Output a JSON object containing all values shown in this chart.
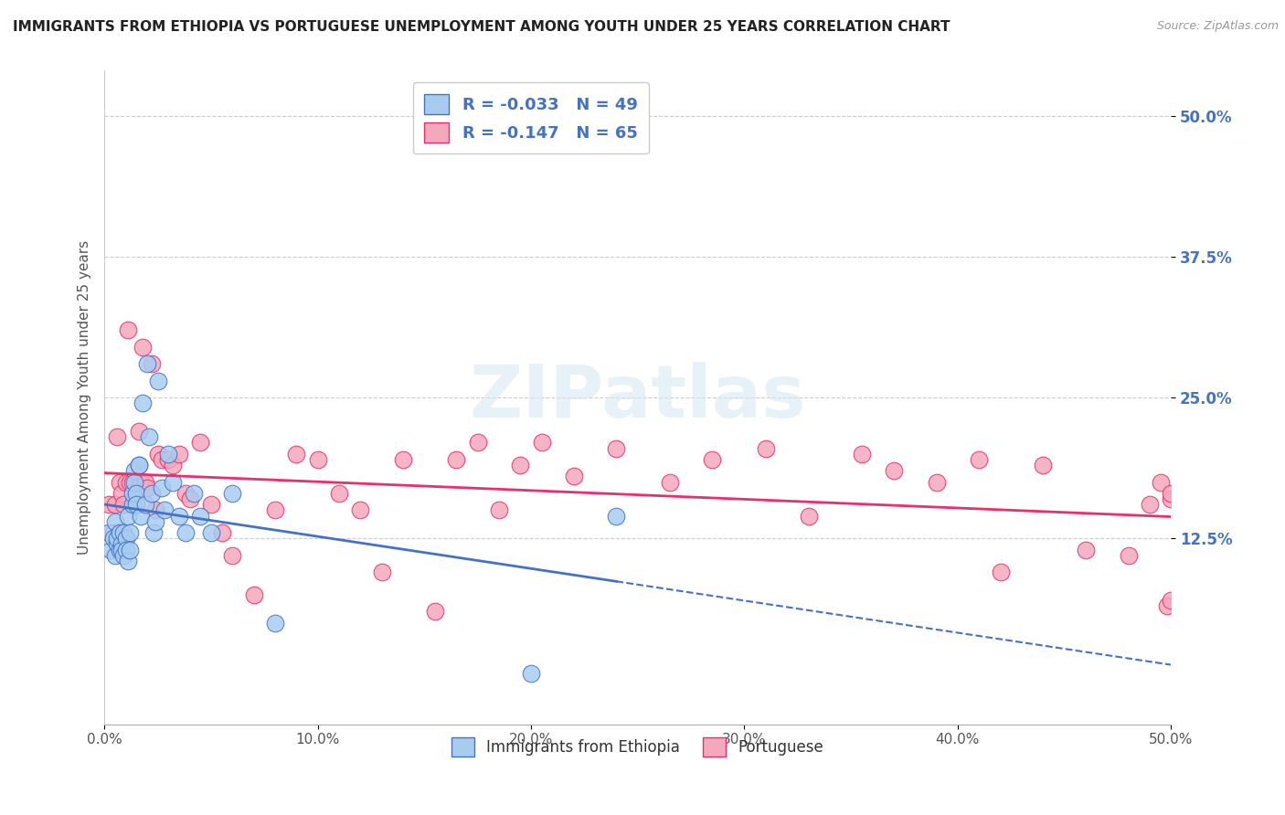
{
  "title": "IMMIGRANTS FROM ETHIOPIA VS PORTUGUESE UNEMPLOYMENT AMONG YOUTH UNDER 25 YEARS CORRELATION CHART",
  "source": "Source: ZipAtlas.com",
  "ylabel": "Unemployment Among Youth under 25 years",
  "watermark": "ZIPatlas",
  "legend_label_1": "Immigrants from Ethiopia",
  "legend_label_2": "Portuguese",
  "legend_r1": "R = -0.033",
  "legend_n1": "N = 49",
  "legend_r2": "R = -0.147",
  "legend_n2": "N = 65",
  "xlim": [
    0.0,
    0.5
  ],
  "ylim": [
    -0.04,
    0.54
  ],
  "xtick_labels": [
    "0.0%",
    "10.0%",
    "20.0%",
    "30.0%",
    "40.0%",
    "50.0%"
  ],
  "xtick_vals": [
    0.0,
    0.1,
    0.2,
    0.3,
    0.4,
    0.5
  ],
  "ytick_labels_right": [
    "12.5%",
    "25.0%",
    "37.5%",
    "50.0%"
  ],
  "ytick_vals_right": [
    0.125,
    0.25,
    0.375,
    0.5
  ],
  "color_blue": "#A8CCF0",
  "color_pink": "#F4A8BC",
  "color_line_blue": "#4472C4",
  "color_line_pink": "#E8306A",
  "background": "#FFFFFF",
  "grid_color": "#CCCCCC",
  "blue_x": [
    0.002,
    0.003,
    0.004,
    0.005,
    0.005,
    0.006,
    0.006,
    0.007,
    0.007,
    0.008,
    0.008,
    0.009,
    0.009,
    0.01,
    0.01,
    0.011,
    0.011,
    0.012,
    0.012,
    0.013,
    0.013,
    0.014,
    0.014,
    0.015,
    0.015,
    0.016,
    0.016,
    0.017,
    0.018,
    0.019,
    0.02,
    0.021,
    0.022,
    0.023,
    0.024,
    0.025,
    0.027,
    0.028,
    0.03,
    0.032,
    0.035,
    0.038,
    0.042,
    0.045,
    0.05,
    0.06,
    0.08,
    0.2,
    0.24
  ],
  "blue_y": [
    0.13,
    0.115,
    0.125,
    0.14,
    0.11,
    0.12,
    0.125,
    0.115,
    0.13,
    0.12,
    0.115,
    0.13,
    0.11,
    0.125,
    0.115,
    0.145,
    0.105,
    0.13,
    0.115,
    0.155,
    0.165,
    0.185,
    0.175,
    0.165,
    0.155,
    0.19,
    0.19,
    0.145,
    0.245,
    0.155,
    0.28,
    0.215,
    0.165,
    0.13,
    0.14,
    0.265,
    0.17,
    0.15,
    0.2,
    0.175,
    0.145,
    0.13,
    0.165,
    0.145,
    0.13,
    0.165,
    0.05,
    0.005,
    0.145
  ],
  "pink_x": [
    0.002,
    0.004,
    0.005,
    0.006,
    0.007,
    0.008,
    0.009,
    0.01,
    0.011,
    0.012,
    0.013,
    0.014,
    0.015,
    0.016,
    0.017,
    0.018,
    0.019,
    0.02,
    0.022,
    0.024,
    0.025,
    0.027,
    0.03,
    0.032,
    0.035,
    0.038,
    0.04,
    0.045,
    0.05,
    0.055,
    0.06,
    0.07,
    0.08,
    0.09,
    0.1,
    0.11,
    0.12,
    0.13,
    0.14,
    0.155,
    0.165,
    0.175,
    0.185,
    0.195,
    0.205,
    0.22,
    0.24,
    0.265,
    0.285,
    0.31,
    0.33,
    0.355,
    0.37,
    0.39,
    0.41,
    0.42,
    0.44,
    0.46,
    0.48,
    0.49,
    0.495,
    0.498,
    0.5,
    0.5,
    0.5
  ],
  "pink_y": [
    0.155,
    0.13,
    0.155,
    0.215,
    0.175,
    0.165,
    0.155,
    0.175,
    0.31,
    0.175,
    0.175,
    0.16,
    0.155,
    0.22,
    0.175,
    0.295,
    0.175,
    0.17,
    0.28,
    0.15,
    0.2,
    0.195,
    0.195,
    0.19,
    0.2,
    0.165,
    0.16,
    0.21,
    0.155,
    0.13,
    0.11,
    0.075,
    0.15,
    0.2,
    0.195,
    0.165,
    0.15,
    0.095,
    0.195,
    0.06,
    0.195,
    0.21,
    0.15,
    0.19,
    0.21,
    0.18,
    0.205,
    0.175,
    0.195,
    0.205,
    0.145,
    0.2,
    0.185,
    0.175,
    0.195,
    0.095,
    0.19,
    0.115,
    0.11,
    0.155,
    0.175,
    0.065,
    0.16,
    0.07,
    0.165
  ]
}
